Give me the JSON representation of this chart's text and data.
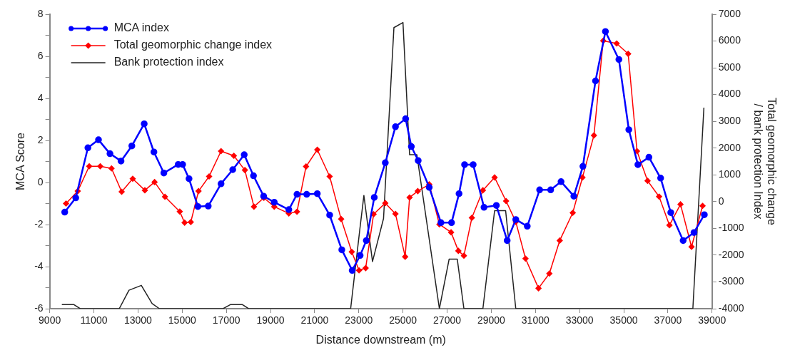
{
  "chart_data": {
    "type": "line",
    "xlabel": "Distance downstream (m)",
    "ylabel": "MCA Score",
    "y2label": "Total geomorphic change / bank protection Index",
    "xlim": [
      9000,
      39000
    ],
    "xticks": [
      9000,
      11000,
      13000,
      15000,
      17000,
      19000,
      21000,
      23000,
      25000,
      27000,
      29000,
      31000,
      33000,
      35000,
      37000,
      39000
    ],
    "ylim": [
      -6,
      8
    ],
    "yticks": [
      -6,
      {
        "value": -5,
        "label": null
      },
      -4,
      {
        "value": -3,
        "label": null
      },
      -2,
      {
        "value": -1,
        "label": null
      },
      0,
      {
        "value": 1,
        "label": null
      },
      2,
      {
        "value": 3,
        "label": null
      },
      4,
      {
        "value": 5,
        "label": null
      },
      6,
      {
        "value": 7,
        "label": null
      },
      8
    ],
    "y2lim": [
      -4000,
      7000
    ],
    "y2ticks": [
      -4000,
      -3000,
      -2000,
      -1000,
      0,
      1000,
      2000,
      3000,
      4000,
      5000,
      6000,
      7000
    ],
    "grid": false,
    "legend": "top left",
    "series": [
      {
        "name": "MCA index",
        "color": "#0000ff",
        "marker": "circle",
        "x": [
          9680,
          10180,
          10730,
          11210,
          11730,
          12230,
          12720,
          13280,
          13720,
          14170,
          14820,
          15020,
          15310,
          15710,
          16180,
          16760,
          17290,
          17810,
          18230,
          18690,
          19170,
          19830,
          20200,
          20640,
          21120,
          21680,
          22230,
          22700,
          23060,
          23340,
          23700,
          24200,
          24660,
          25120,
          25380,
          25690,
          26190,
          26720,
          27200,
          27540,
          27790,
          28180,
          28670,
          29230,
          29720,
          30110,
          30630,
          31190,
          31690,
          32160,
          32740,
          33150,
          33720,
          34170,
          34780,
          35230,
          35640,
          36140,
          36670,
          37130,
          37690,
          38180,
          38650
        ],
        "values": [
          -1.41,
          -0.73,
          1.65,
          2.03,
          1.37,
          1.02,
          1.74,
          2.79,
          1.45,
          0.45,
          0.86,
          0.86,
          0.18,
          -1.14,
          -1.12,
          -0.06,
          0.61,
          1.32,
          0.32,
          -0.65,
          -0.94,
          -1.29,
          -0.56,
          -0.56,
          -0.53,
          -1.55,
          -3.2,
          -4.18,
          -3.47,
          -2.76,
          -0.71,
          0.94,
          2.65,
          3.03,
          1.71,
          1.04,
          -0.23,
          -1.91,
          -1.91,
          -0.53,
          0.85,
          0.85,
          -1.18,
          -1.09,
          -2.76,
          -1.76,
          -2.08,
          -0.35,
          -0.35,
          0.04,
          -0.65,
          0.77,
          4.83,
          7.18,
          5.85,
          2.51,
          0.85,
          1.2,
          0.21,
          -1.43,
          -2.76,
          -2.38,
          -1.53
        ]
      },
      {
        "name": "Total geomorphic change index",
        "color": "#ff0000",
        "marker": "diamond",
        "x": [
          9740,
          10270,
          10790,
          11290,
          11800,
          12260,
          12760,
          13310,
          13750,
          14220,
          14890,
          15110,
          15390,
          15740,
          16220,
          16760,
          17340,
          17840,
          18250,
          18700,
          19170,
          19830,
          20200,
          20610,
          21120,
          21680,
          22200,
          22680,
          23010,
          23310,
          23670,
          24200,
          24660,
          25100,
          25300,
          25670,
          26190,
          26650,
          27180,
          27510,
          27760,
          28120,
          28620,
          29150,
          29670,
          30110,
          30550,
          31140,
          31630,
          32100,
          32690,
          33130,
          33650,
          34070,
          34680,
          35200,
          35600,
          36080,
          36600,
          37070,
          37570,
          38070,
          38570
        ],
        "values": [
          -1.0,
          -0.41,
          0.77,
          0.77,
          0.67,
          -0.44,
          0.18,
          -0.37,
          0.02,
          -0.68,
          -1.38,
          -1.91,
          -1.88,
          -0.41,
          0.29,
          1.49,
          1.27,
          0.59,
          -1.15,
          -0.73,
          -1.15,
          -1.47,
          -1.39,
          0.76,
          1.56,
          0.29,
          -1.74,
          -3.3,
          -4.18,
          -4.07,
          -1.51,
          -0.98,
          -1.49,
          -3.53,
          -0.71,
          -0.41,
          -0.09,
          -1.99,
          -2.37,
          -3.25,
          -3.48,
          -1.68,
          -0.37,
          0.24,
          -0.88,
          -1.87,
          -3.62,
          -5.03,
          -4.33,
          -2.76,
          -1.44,
          0.24,
          2.24,
          6.74,
          6.61,
          6.12,
          1.49,
          0.08,
          -0.67,
          -2.03,
          -1.04,
          -3.06,
          -1.11
        ]
      },
      {
        "name": "Bank protection index",
        "color": "#222222",
        "marker": "none",
        "axis": "y2",
        "x": [
          9550,
          10100,
          10380,
          12150,
          12590,
          13150,
          13640,
          13970,
          16850,
          17180,
          17730,
          18010,
          22630,
          23040,
          23230,
          23620,
          24120,
          24590,
          25000,
          25300,
          25630,
          26650,
          27090,
          27460,
          27760,
          28620,
          29150,
          29650,
          30110,
          38130,
          38630
        ],
        "values": [
          -3850,
          -3850,
          -4000,
          -4000,
          -3310,
          -3130,
          -3810,
          -4000,
          -4000,
          -3850,
          -3850,
          -4000,
          -4000,
          -1080,
          230,
          -2240,
          -630,
          6500,
          6690,
          1750,
          1750,
          -4000,
          -2150,
          -2150,
          -4000,
          -4000,
          -340,
          -340,
          -4000,
          -4000,
          3510
        ]
      }
    ]
  }
}
